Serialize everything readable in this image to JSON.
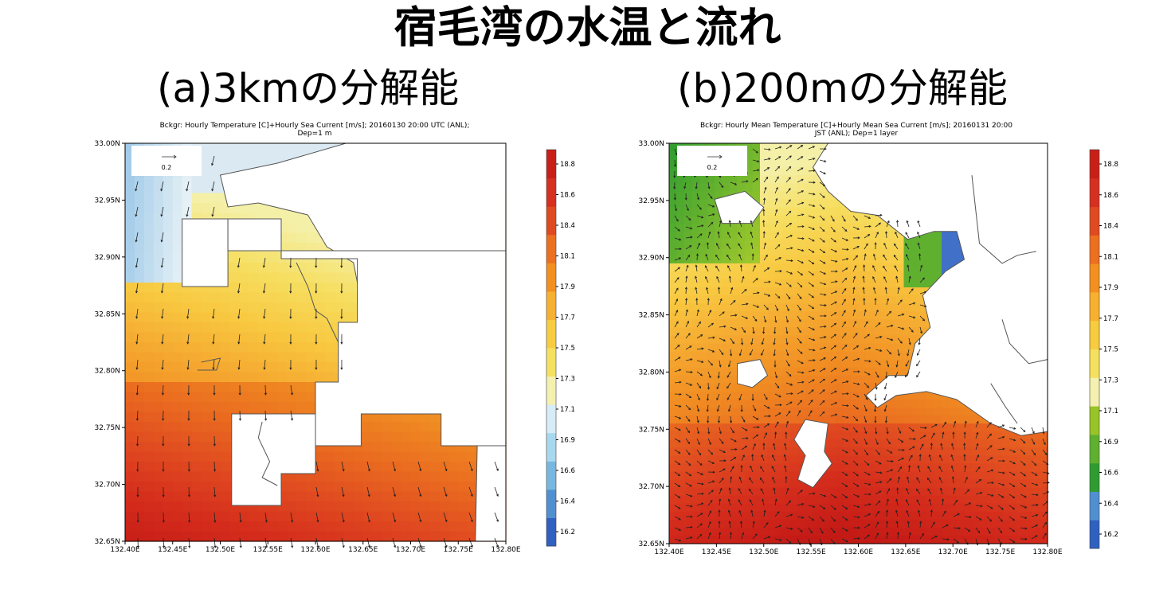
{
  "figure": {
    "main_title": "宿毛湾の水温と流れ",
    "subtitle_a": "(a)3kmの分解能",
    "subtitle_b": "(b)200mの分解能"
  },
  "colors": {
    "colorbar": [
      "#3060c0",
      "#5090d0",
      "#78b8e0",
      "#a8d8f0",
      "#d6ecf6",
      "#f4f0b0",
      "#f6e060",
      "#f8cc40",
      "#f8b030",
      "#f39020",
      "#ec7020",
      "#e04a20",
      "#d63020",
      "#c82018"
    ],
    "green": [
      "#2e9c30",
      "#60b030",
      "#98c428"
    ],
    "land": "#ffffff",
    "coast": "#555555"
  },
  "chart_data": [
    {
      "type": "heatmap",
      "title": "Bckgr: Hourly Temperature [C]+Hourly Sea Current [m/s]; 20160130 20:00 UTC (ANL);",
      "subtitle": "Dep=1 m",
      "x_ticks": [
        "132.40E",
        "132.45E",
        "132.50E",
        "132.55E",
        "132.60E",
        "132.65E",
        "132.70E",
        "132.75E",
        "132.80E"
      ],
      "y_ticks": [
        "33.00N",
        "32.95N",
        "32.90N",
        "32.85N",
        "32.80N",
        "32.75N",
        "32.70N",
        "32.65N"
      ],
      "xlim": [
        132.4,
        132.8
      ],
      "ylim": [
        32.65,
        33.0
      ],
      "colorbar_ticks": [
        "18.8",
        "18.6",
        "18.4",
        "18.1",
        "17.9",
        "17.7",
        "17.5",
        "17.3",
        "17.1",
        "16.9",
        "16.6",
        "16.4",
        "16.2"
      ],
      "vector_key": "0.2",
      "resolution": "3km",
      "annotation": "temperature field with current vectors"
    },
    {
      "type": "heatmap",
      "title": "Bckgr: Hourly Mean Temperature [C]+Hourly Mean Sea Current [m/s]; 20160131 20:00",
      "subtitle": "JST (ANL); Dep=1 layer",
      "x_ticks": [
        "132.40E",
        "132.45E",
        "132.50E",
        "132.55E",
        "132.60E",
        "132.65E",
        "132.70E",
        "132.75E",
        "132.80E"
      ],
      "y_ticks": [
        "33.00N",
        "32.95N",
        "32.90N",
        "32.85N",
        "32.80N",
        "32.75N",
        "32.70N",
        "32.65N"
      ],
      "xlim": [
        132.4,
        132.8
      ],
      "ylim": [
        32.65,
        33.0
      ],
      "colorbar_ticks": [
        "18.8",
        "18.6",
        "18.4",
        "18.1",
        "17.9",
        "17.7",
        "17.5",
        "17.3",
        "17.1",
        "16.9",
        "16.6",
        "16.4",
        "16.2"
      ],
      "vector_key": "0.2",
      "resolution": "200m",
      "annotation": "temperature field with current vectors"
    }
  ]
}
